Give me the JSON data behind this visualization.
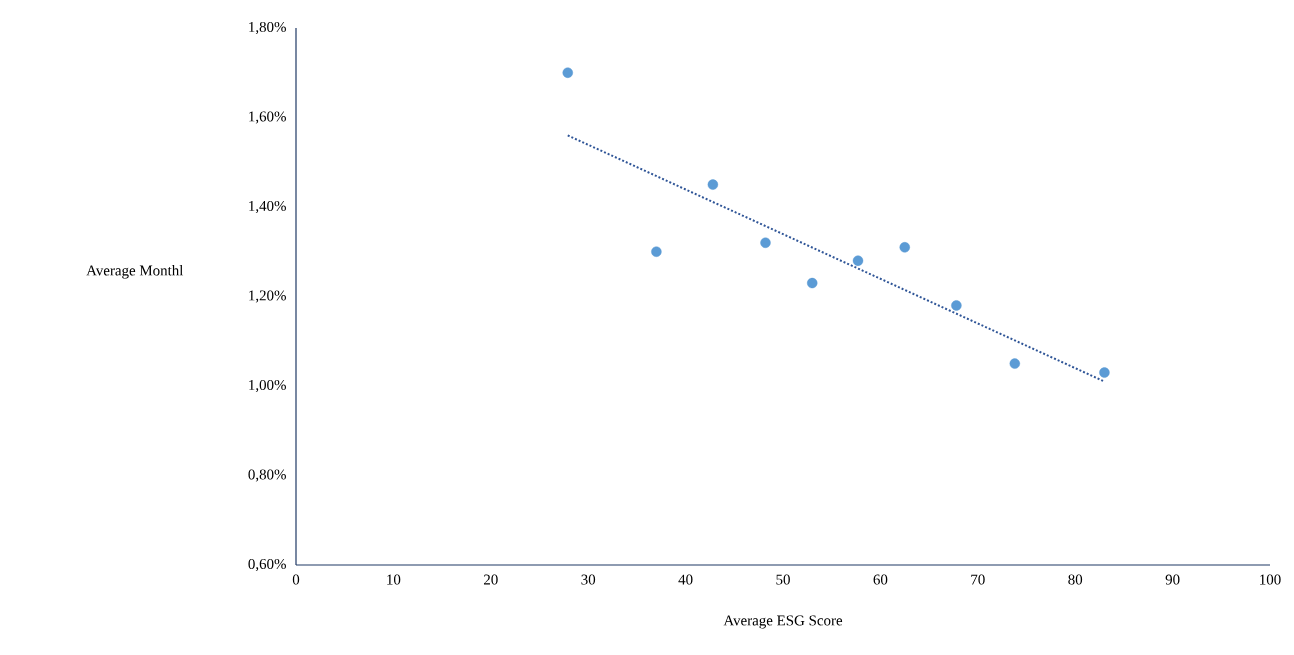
{
  "chart_data": {
    "type": "scatter",
    "xlabel": "Average ESG Score",
    "ylabel": "Average Monthl",
    "marker": "circle",
    "xlim": [
      0,
      100
    ],
    "xticks": [
      0,
      10,
      20,
      30,
      40,
      50,
      60,
      70,
      80,
      90,
      100
    ],
    "ylim": [
      0.6,
      1.8
    ],
    "yticks": [
      {
        "value": 0.6,
        "label": "0,60%"
      },
      {
        "value": 0.8,
        "label": "0,80%"
      },
      {
        "value": 1.0,
        "label": "1,00%"
      },
      {
        "value": 1.2,
        "label": "1,20%"
      },
      {
        "value": 1.4,
        "label": "1,40%"
      },
      {
        "value": 1.6,
        "label": "1,60%"
      },
      {
        "value": 1.8,
        "label": "1,80%"
      }
    ],
    "series": [
      {
        "color": "#5b9bd5",
        "x": [
          27.9,
          37.0,
          42.8,
          48.2,
          53.0,
          57.7,
          62.5,
          67.8,
          73.8,
          83.0
        ],
        "values": [
          1.7,
          1.3,
          1.45,
          1.32,
          1.23,
          1.28,
          1.31,
          1.18,
          1.05,
          1.03
        ]
      },
      {
        "type": "line",
        "color": "#2f5597",
        "line_style": "dotted",
        "marker": "none",
        "x": [
          27.9,
          83.0
        ],
        "values": [
          1.56,
          1.01
        ]
      }
    ]
  }
}
